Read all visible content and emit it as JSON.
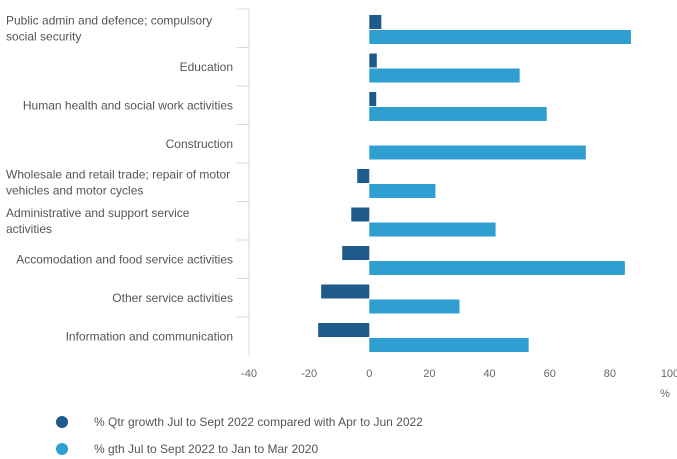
{
  "chart_data": {
    "type": "bar",
    "orientation": "horizontal",
    "categories": [
      [
        "Public admin and defence; compulsory",
        "social security"
      ],
      [
        "Education"
      ],
      [
        "Human health and social work activities"
      ],
      [
        "Construction"
      ],
      [
        "Wholesale and retail trade; repair of motor",
        "vehicles and motor cycles"
      ],
      [
        "Administrative and support service",
        "activities"
      ],
      [
        "Accomodation and food service activities"
      ],
      [
        "Other service activities"
      ],
      [
        "Information and communication"
      ]
    ],
    "series": [
      {
        "name": "% Qtr growth Jul to Sept 2022 compared with Apr to Jun 2022",
        "color": "#1f5a8c",
        "values": [
          4,
          2.5,
          2.3,
          0,
          -4,
          -6,
          -9,
          -16,
          -17
        ]
      },
      {
        "name": "% gth Jul to Sept 2022 to Jan to Mar 2020",
        "color": "#2e9fd0",
        "values": [
          87,
          50,
          59,
          72,
          22,
          42,
          85,
          30,
          53
        ]
      }
    ],
    "xlim": [
      -40,
      100
    ],
    "xticks": [
      "-40",
      "-20",
      "0",
      "20",
      "40",
      "60",
      "80",
      "100"
    ],
    "xunit": "%",
    "legend_position": "bottom"
  }
}
